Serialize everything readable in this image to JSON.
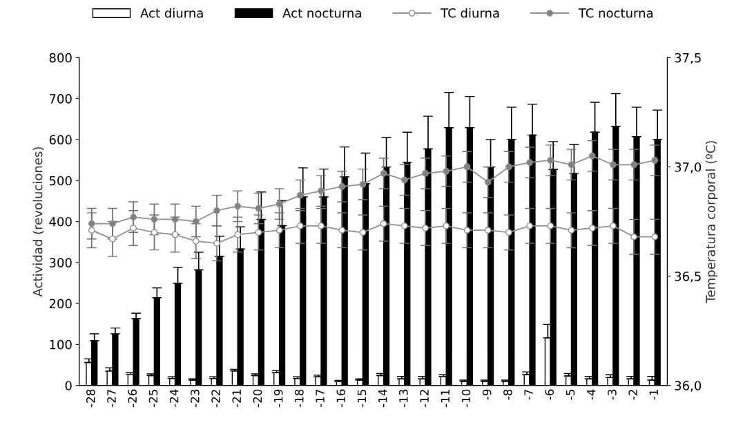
{
  "chart_data": {
    "type": "bar",
    "ylabel": "Actividad (revoluciones)",
    "y2label": "Temperatura corporal (ºC)",
    "categories": [
      "-28",
      "-27",
      "-26",
      "-25",
      "-24",
      "-23",
      "-22",
      "-21",
      "-20",
      "-19",
      "-18",
      "-17",
      "-16",
      "-15",
      "-14",
      "-13",
      "-12",
      "-11",
      "-10",
      "-9",
      "-8",
      "-7",
      "-6",
      "-5",
      "-4",
      "-3",
      "-2",
      "-1"
    ],
    "series": [
      {
        "name": "Act diurna",
        "color": "#ffffff",
        "values": [
          56,
          35,
          27,
          24,
          17,
          13,
          17,
          35,
          24,
          31,
          17,
          21,
          9,
          13,
          24,
          16,
          16,
          22,
          10,
          10,
          10,
          26,
          116,
          23,
          16,
          19,
          16,
          13
        ],
        "errors": [
          9,
          8,
          4,
          4,
          4,
          3,
          4,
          4,
          4,
          5,
          4,
          4,
          3,
          3,
          5,
          6,
          6,
          4,
          3,
          3,
          3,
          7,
          33,
          6,
          6,
          7,
          6,
          9
        ]
      },
      {
        "name": "Act nocturna",
        "color": "#000000",
        "values": [
          109,
          126,
          163,
          214,
          249,
          282,
          315,
          333,
          405,
          390,
          460,
          460,
          509,
          492,
          533,
          544,
          577,
          629,
          629,
          533,
          600,
          611,
          527,
          517,
          618,
          632,
          607,
          600
        ],
        "errors": [
          17,
          14,
          13,
          24,
          39,
          43,
          49,
          54,
          67,
          61,
          71,
          68,
          73,
          75,
          72,
          74,
          80,
          86,
          76,
          67,
          79,
          75,
          68,
          71,
          73,
          80,
          72,
          72
        ]
      },
      {
        "name": "TC diurna",
        "type": "line",
        "axis": "y2",
        "color": "#ffffff",
        "values": [
          36.71,
          36.67,
          36.72,
          36.7,
          36.69,
          36.66,
          36.65,
          36.69,
          36.7,
          36.71,
          36.73,
          36.73,
          36.71,
          36.7,
          36.74,
          36.73,
          36.72,
          36.73,
          36.71,
          36.71,
          36.7,
          36.73,
          36.73,
          36.71,
          36.72,
          36.73,
          36.68,
          36.68
        ],
        "errors": [
          0.08,
          0.08,
          0.08,
          0.08,
          0.08,
          0.08,
          0.08,
          0.08,
          0.08,
          0.08,
          0.08,
          0.08,
          0.08,
          0.08,
          0.08,
          0.08,
          0.08,
          0.08,
          0.08,
          0.08,
          0.08,
          0.08,
          0.08,
          0.08,
          0.08,
          0.08,
          0.08,
          0.08
        ]
      },
      {
        "name": "TC nocturna",
        "type": "line",
        "axis": "y2",
        "color": "#808080",
        "values": [
          36.74,
          36.74,
          36.77,
          36.76,
          36.76,
          36.75,
          36.8,
          36.82,
          36.81,
          36.83,
          36.87,
          36.89,
          36.91,
          36.92,
          36.97,
          36.94,
          36.97,
          36.98,
          37.0,
          36.93,
          37.0,
          37.02,
          37.03,
          37.01,
          37.05,
          37.01,
          37.01,
          37.03
        ],
        "errors": [
          0.07,
          0.07,
          0.07,
          0.07,
          0.07,
          0.07,
          0.07,
          0.07,
          0.07,
          0.07,
          0.07,
          0.07,
          0.07,
          0.07,
          0.07,
          0.07,
          0.07,
          0.07,
          0.07,
          0.07,
          0.07,
          0.07,
          0.07,
          0.07,
          0.07,
          0.07,
          0.07,
          0.07
        ]
      }
    ],
    "ylim": [
      0,
      800
    ],
    "yticks": [
      0,
      100,
      200,
      300,
      400,
      500,
      600,
      700,
      800
    ],
    "y2lim": [
      36.0,
      37.5
    ],
    "y2ticks": [
      {
        "value": 36.0,
        "label": "36,0"
      },
      {
        "value": 36.5,
        "label": "36,5"
      },
      {
        "value": 37.0,
        "label": "37,0"
      },
      {
        "value": 37.5,
        "label": "37,5"
      }
    ],
    "marker": "circle",
    "legend": "top",
    "grid": false
  }
}
